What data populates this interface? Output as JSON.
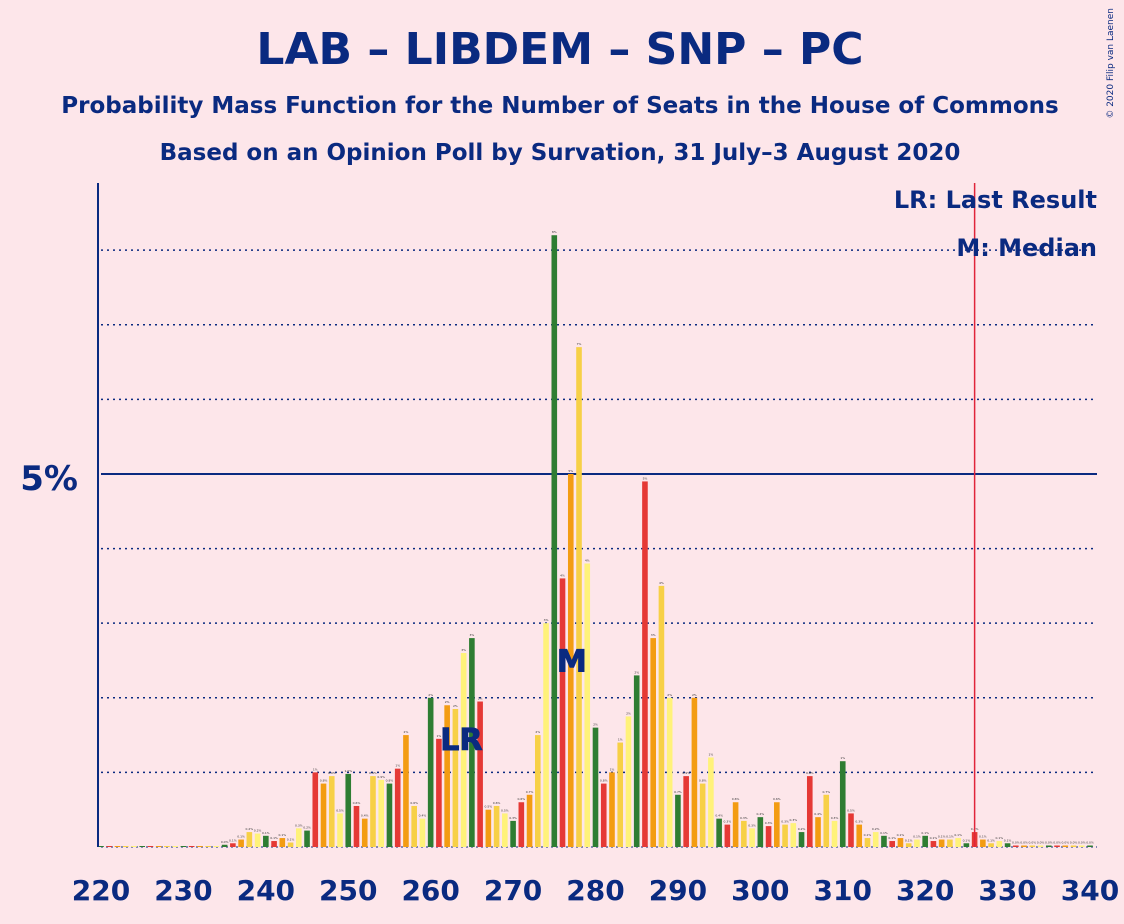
{
  "title": "LAB – LIBDEM – SNP – PC",
  "subtitle": "Probability Mass Function for the Number of Seats in the House of Commons",
  "subtitle2": "Based on an Opinion Poll by Survation, 31 July–3 August 2020",
  "copyright": "© 2020 Filip van Laenen",
  "legend": {
    "last_result": "LR: Last Result",
    "median": "M: Median"
  },
  "markers": {
    "lr_label": "LR",
    "median_label": "M"
  },
  "colors": {
    "background": "#fde6ea",
    "text": "#0a2a80",
    "bar_colors": [
      "#2e7d32",
      "#e53935",
      "#f39c12",
      "#f7d046",
      "#fff27a"
    ],
    "majority_line": "#e0243a"
  },
  "chart_data": {
    "type": "bar",
    "xlabel": "",
    "ylabel": "",
    "x_ticks": [
      "220",
      "230",
      "240",
      "250",
      "260",
      "270",
      "280",
      "290",
      "300",
      "310",
      "320",
      "330",
      "340"
    ],
    "y_ticks": [
      "5%"
    ],
    "xlim": [
      220,
      340
    ],
    "ylim": [
      0,
      8.9
    ],
    "gridlines_percent": [
      1,
      2,
      3,
      4,
      6,
      7,
      8
    ],
    "majority_line_x": 326,
    "last_result_x": 263,
    "median_x": 277,
    "x": [
      220,
      221,
      222,
      223,
      224,
      225,
      226,
      227,
      228,
      229,
      230,
      231,
      232,
      233,
      234,
      235,
      236,
      237,
      238,
      239,
      240,
      241,
      242,
      243,
      244,
      245,
      246,
      247,
      248,
      249,
      250,
      251,
      252,
      253,
      254,
      255,
      256,
      257,
      258,
      259,
      260,
      261,
      262,
      263,
      264,
      265,
      266,
      267,
      268,
      269,
      270,
      271,
      272,
      273,
      274,
      275,
      276,
      277,
      278,
      279,
      280,
      281,
      282,
      283,
      284,
      285,
      286,
      287,
      288,
      289,
      290,
      291,
      292,
      293,
      294,
      295,
      296,
      297,
      298,
      299,
      300,
      301,
      302,
      303,
      304,
      305,
      306,
      307,
      308,
      309,
      310,
      311,
      312,
      313,
      314,
      315,
      316,
      317,
      318,
      319,
      320,
      321,
      322,
      323,
      324,
      325,
      326,
      327,
      328,
      329,
      330,
      331,
      332,
      333,
      334,
      335,
      336,
      337,
      338,
      339,
      340
    ],
    "values": [
      0,
      0,
      0,
      0,
      0,
      0,
      0,
      0,
      0,
      0,
      0,
      0,
      0,
      0,
      0,
      0.03,
      0.05,
      0.1,
      0.2,
      0.18,
      0.15,
      0.08,
      0.12,
      0.06,
      0.25,
      0.22,
      1.0,
      0.85,
      0.95,
      0.45,
      0.98,
      0.55,
      0.38,
      0.95,
      0.9,
      0.85,
      1.05,
      1.5,
      0.55,
      0.38,
      2.0,
      1.45,
      1.9,
      1.85,
      2.6,
      2.8,
      1.95,
      0.5,
      0.55,
      0.45,
      0.35,
      0.6,
      0.7,
      1.5,
      3.0,
      8.2,
      3.6,
      5.0,
      6.7,
      3.8,
      1.6,
      0.85,
      1.0,
      1.4,
      1.75,
      2.3,
      4.9,
      2.8,
      3.5,
      2.0,
      0.7,
      0.95,
      2.0,
      0.85,
      1.2,
      0.38,
      0.3,
      0.6,
      0.35,
      0.25,
      0.4,
      0.28,
      0.6,
      0.3,
      0.32,
      0.2,
      0.95,
      0.4,
      0.7,
      0.35,
      1.15,
      0.45,
      0.3,
      0.12,
      0.2,
      0.15,
      0.08,
      0.12,
      0.05,
      0.1,
      0.15,
      0.08,
      0.1,
      0.1,
      0.12,
      0.05,
      0.2,
      0.1,
      0.05,
      0.08,
      0.05,
      0.02,
      0.02,
      0.02,
      0.02,
      0.02,
      0.02,
      0.02,
      0.02,
      0.02,
      0.02
    ]
  }
}
